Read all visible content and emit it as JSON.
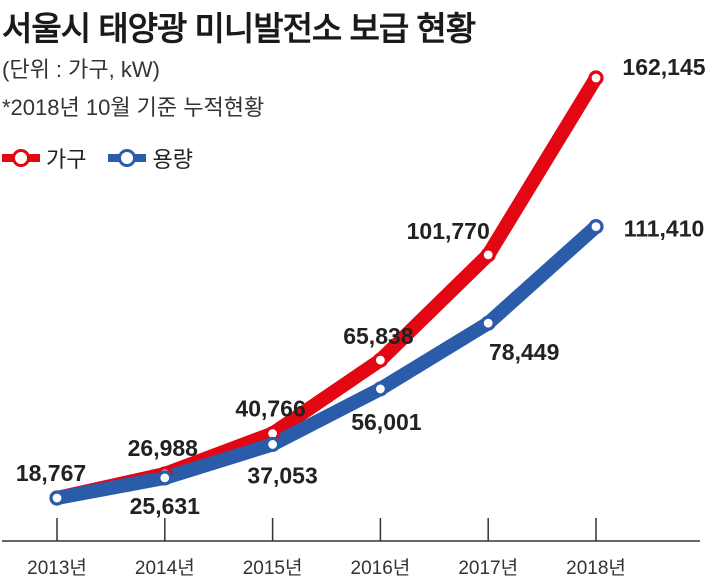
{
  "header": {
    "title": "서울시 태양광 미니발전소 보급 현황",
    "unit": "(단위 : 가구, kW)",
    "note": "*2018년 10월 기준 누적현황"
  },
  "legend": {
    "households_label": "가구",
    "capacity_label": "용량"
  },
  "colors": {
    "households": "#e30613",
    "capacity": "#2a5caa"
  },
  "chart_data": {
    "type": "line",
    "title": "서울시 태양광 미니발전소 보급 현황",
    "xlabel": "",
    "ylabel": "",
    "categories": [
      "2013년",
      "2014년",
      "2015년",
      "2016년",
      "2017년",
      "2018년"
    ],
    "series": [
      {
        "name": "가구",
        "values": [
          18767,
          26988,
          40766,
          65838,
          101770,
          162145
        ],
        "labels": [
          "18,767",
          "26,988",
          "40,766",
          "65,838",
          "101,770",
          "162,145"
        ]
      },
      {
        "name": "용량",
        "values": [
          18767,
          25631,
          37053,
          56001,
          78449,
          111410
        ],
        "labels": [
          "",
          "25,631",
          "37,053",
          "56,001",
          "78,449",
          "111,410"
        ]
      }
    ],
    "grid": false
  }
}
